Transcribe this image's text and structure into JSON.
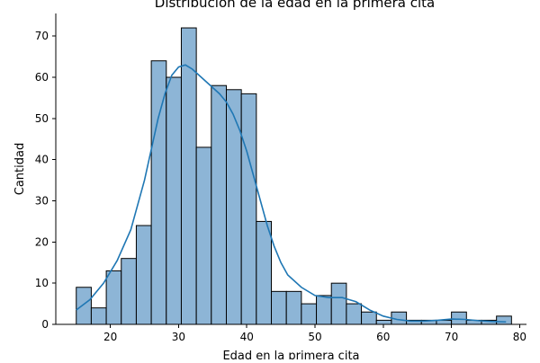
{
  "chart_data": {
    "type": "bar",
    "subtype": "histogram-with-kde",
    "title": "Distribución de la edad en la primera cita",
    "xlabel": "Edad en la primera cita",
    "ylabel": "Cantidad",
    "xlim": [
      12,
      81
    ],
    "ylim": [
      0,
      75.5
    ],
    "xticks": [
      20,
      30,
      40,
      50,
      60,
      70,
      80
    ],
    "yticks": [
      0,
      10,
      20,
      30,
      40,
      50,
      60,
      70
    ],
    "grid": false,
    "spines": [
      "left",
      "bottom"
    ],
    "bar_fill": "#8db5d6",
    "line_color": "#1f77b4",
    "bins": [
      {
        "start": 15.0,
        "end": 17.2,
        "count": 9
      },
      {
        "start": 17.2,
        "end": 19.4,
        "count": 4
      },
      {
        "start": 19.4,
        "end": 21.6,
        "count": 13
      },
      {
        "start": 21.6,
        "end": 23.8,
        "count": 16
      },
      {
        "start": 23.8,
        "end": 26.0,
        "count": 24
      },
      {
        "start": 26.0,
        "end": 28.2,
        "count": 64
      },
      {
        "start": 28.2,
        "end": 30.4,
        "count": 60
      },
      {
        "start": 30.4,
        "end": 32.6,
        "count": 72
      },
      {
        "start": 32.6,
        "end": 34.8,
        "count": 43
      },
      {
        "start": 34.8,
        "end": 37.0,
        "count": 58
      },
      {
        "start": 37.0,
        "end": 39.2,
        "count": 57
      },
      {
        "start": 39.2,
        "end": 41.4,
        "count": 56
      },
      {
        "start": 41.4,
        "end": 43.6,
        "count": 25
      },
      {
        "start": 43.6,
        "end": 45.8,
        "count": 8
      },
      {
        "start": 45.8,
        "end": 48.0,
        "count": 8
      },
      {
        "start": 48.0,
        "end": 50.2,
        "count": 5
      },
      {
        "start": 50.2,
        "end": 52.4,
        "count": 7
      },
      {
        "start": 52.4,
        "end": 54.6,
        "count": 10
      },
      {
        "start": 54.6,
        "end": 56.8,
        "count": 5
      },
      {
        "start": 56.8,
        "end": 59.0,
        "count": 3
      },
      {
        "start": 59.0,
        "end": 61.2,
        "count": 1
      },
      {
        "start": 61.2,
        "end": 63.4,
        "count": 3
      },
      {
        "start": 63.4,
        "end": 65.6,
        "count": 1
      },
      {
        "start": 65.6,
        "end": 67.8,
        "count": 1
      },
      {
        "start": 67.8,
        "end": 70.0,
        "count": 1
      },
      {
        "start": 70.0,
        "end": 72.2,
        "count": 3
      },
      {
        "start": 72.2,
        "end": 74.4,
        "count": 1
      },
      {
        "start": 74.4,
        "end": 76.6,
        "count": 1
      },
      {
        "start": 76.6,
        "end": 78.8,
        "count": 2
      }
    ],
    "kde": {
      "x": [
        15,
        17,
        19,
        21,
        23,
        25,
        27,
        28,
        29,
        30,
        31,
        32,
        33,
        34,
        35,
        36,
        37,
        38,
        39,
        40,
        41,
        42,
        43,
        44,
        45,
        46,
        48,
        50,
        52,
        54,
        56,
        58,
        60,
        62,
        64,
        66,
        68,
        70,
        72,
        74,
        76,
        78
      ],
      "y": [
        3.5,
        6,
        10,
        15.5,
        23,
        35,
        50,
        56,
        60.5,
        62.5,
        63,
        62,
        60.5,
        59,
        57.5,
        56,
        54,
        51,
        47,
        42,
        36,
        30,
        24,
        19,
        15,
        12,
        9,
        7,
        6.5,
        6.5,
        5.5,
        3.5,
        2,
        1.2,
        0.8,
        0.8,
        1,
        1.3,
        1.2,
        0.9,
        0.7,
        0.6
      ]
    }
  }
}
